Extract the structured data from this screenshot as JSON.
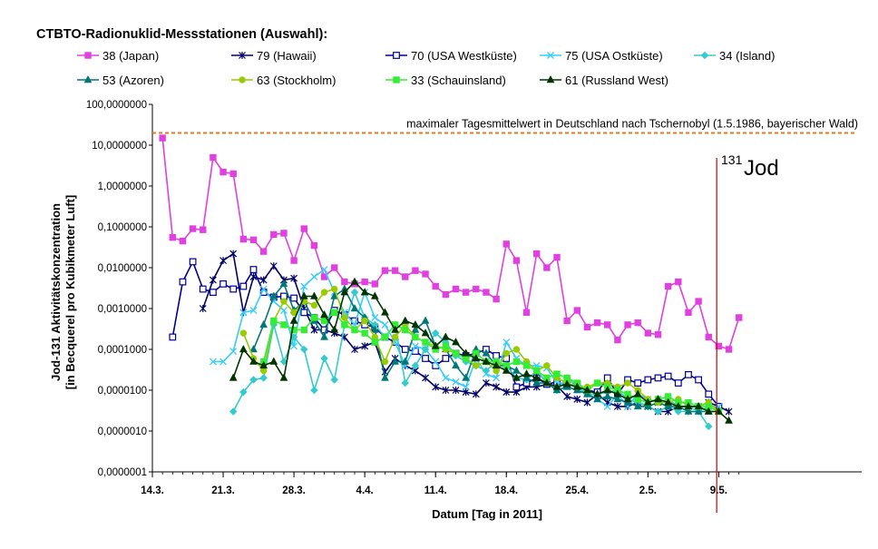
{
  "chart_data": {
    "type": "line",
    "title": "CTBTO-Radionuklid-Messstationen (Auswahl):",
    "xlabel": "Datum  [Tag in 2011]",
    "ylabel": "Jod-131 Aktivitätskonzentration",
    "ylabel2": "[in Becquerel pro Kubikmeter Luft]",
    "y_scale": "log",
    "ylim": [
      1e-07,
      100
    ],
    "y_tick_labels": [
      "0,0000001",
      "0,0000010",
      "0,0000100",
      "0,0001000",
      "0,0010000",
      "0,0100000",
      "0,1000000",
      "1,0000000",
      "10,0000000",
      "100,0000000"
    ],
    "x_range_days": [
      0,
      58
    ],
    "x_tick_days": [
      0,
      7,
      14,
      21,
      28,
      35,
      42,
      49,
      56
    ],
    "x_tick_labels": [
      "14.3.",
      "21.3.",
      "28.3.",
      "4.4.",
      "11.4.",
      "18.4.",
      "25.4.",
      "2.5.",
      "9.5."
    ],
    "reference_line": {
      "value": 20,
      "label": "maximaler Tagesmittelwert in Deutschland nach Tschernobyl (1.5.1986, bayerischer Wald)",
      "color": "#E87722"
    },
    "marker_line": {
      "day": 55.8,
      "label": "Jod",
      "superscript": "131",
      "color": "#CC0000"
    },
    "series": [
      {
        "name": "38 (Japan)",
        "color": "#E040E0",
        "marker": "square-filled",
        "x": [
          1,
          2,
          3,
          4,
          5,
          6,
          7,
          8,
          9,
          10,
          11,
          12,
          13,
          14,
          15,
          16,
          17,
          18,
          19,
          20,
          21,
          22,
          23,
          24,
          25,
          26,
          27,
          28,
          29,
          30,
          31,
          32,
          33,
          34,
          35,
          36,
          37,
          38,
          39,
          40,
          41,
          42,
          43,
          44,
          45,
          46,
          47,
          48,
          49,
          50,
          51,
          52,
          53,
          54,
          55,
          56,
          57,
          58
        ],
        "values": [
          15,
          0.055,
          0.045,
          0.09,
          0.085,
          5,
          2.2,
          2,
          0.05,
          0.048,
          0.025,
          0.065,
          0.07,
          0.015,
          0.09,
          0.035,
          0.006,
          0.01,
          0.0045,
          0.004,
          0.0045,
          0.004,
          0.0085,
          0.0085,
          0.006,
          0.0085,
          0.007,
          0.0035,
          0.0022,
          0.003,
          0.0025,
          0.003,
          0.0025,
          0.0017,
          0.038,
          0.015,
          0.0008,
          0.022,
          0.01,
          0.018,
          0.0005,
          0.0009,
          0.00035,
          0.00045,
          0.0004,
          0.00017,
          0.0004,
          0.00045,
          0.00025,
          0.00023,
          0.0035,
          0.0045,
          0.0008,
          0.0015,
          0.0002,
          0.00012,
          0.0001,
          0.0006
        ]
      },
      {
        "name": "79 (Hawaii)",
        "color": "#000066",
        "marker": "star",
        "x": [
          5,
          6,
          7,
          8,
          9,
          10,
          11,
          12,
          13,
          14,
          15,
          16,
          17,
          18,
          19,
          20,
          21,
          22,
          23,
          24,
          25,
          26,
          27,
          28,
          29,
          30,
          31,
          32,
          33,
          34,
          35,
          36,
          37,
          38,
          39,
          40,
          41,
          42,
          43,
          44,
          45,
          46,
          47,
          48,
          49,
          50,
          51,
          52,
          53,
          54,
          55,
          56,
          57
        ],
        "values": [
          0.001,
          0.005,
          0.015,
          0.022,
          0.0008,
          0.006,
          0.005,
          0.011,
          0.005,
          0.0055,
          0.001,
          0.0003,
          0.0003,
          0.00025,
          0.0002,
          0.0001,
          0.00012,
          0.00015,
          2.8e-05,
          6e-05,
          4e-05,
          3e-05,
          2e-05,
          1.2e-05,
          1e-05,
          1e-05,
          9e-06,
          8e-06,
          1.5e-05,
          1.2e-05,
          9e-06,
          9e-06,
          1.2e-05,
          1.2e-05,
          1.4e-05,
          1.3e-05,
          7e-06,
          6e-06,
          5e-06,
          8e-06,
          5e-06,
          4e-06,
          4e-06,
          5e-06,
          4e-06,
          3e-06,
          3e-06,
          4e-06,
          4e-06,
          4e-06,
          5e-06,
          4e-06,
          3e-06
        ]
      },
      {
        "name": "70 (USA Westküste)",
        "color": "#000099",
        "marker": "square-open",
        "x": [
          2,
          3,
          4,
          5,
          6,
          7,
          8,
          9,
          10,
          11,
          12,
          13,
          14,
          15,
          16,
          17,
          18,
          19,
          20,
          21,
          22,
          23,
          24,
          25,
          26,
          27,
          28,
          29,
          30,
          31,
          32,
          33,
          34,
          35,
          36,
          37,
          38,
          39,
          40,
          41,
          42,
          43,
          44,
          45,
          46,
          47,
          48,
          49,
          50,
          51,
          52,
          53,
          54,
          55,
          56
        ],
        "values": [
          0.0002,
          0.0045,
          0.014,
          0.003,
          0.0025,
          0.004,
          0.003,
          0.0035,
          0.009,
          0.0025,
          0.0019,
          0.002,
          0.0018,
          0.0008,
          0.0006,
          0.0003,
          0.0009,
          0.0007,
          0.0005,
          0.0004,
          0.00035,
          0.0002,
          0.00015,
          0.0001,
          9e-05,
          6e-05,
          4e-05,
          6e-05,
          8e-05,
          7e-05,
          8e-05,
          0.0001,
          7e-05,
          6e-05,
          1.2e-05,
          1.5e-05,
          2e-05,
          1.4e-05,
          1.6e-05,
          1.3e-05,
          1.4e-05,
          1e-05,
          9e-06,
          2e-05,
          8e-06,
          1.8e-05,
          1.5e-05,
          1.8e-05,
          2e-05,
          2.2e-05,
          1.5e-05,
          2.4e-05,
          1.8e-05,
          8e-06,
          4e-06
        ]
      },
      {
        "name": "75 (USA Ostküste)",
        "color": "#33CCFF",
        "marker": "x",
        "x": [
          6,
          7,
          8,
          9,
          10,
          11,
          12,
          13,
          14,
          15,
          16,
          17,
          18,
          19,
          20,
          21,
          22,
          23,
          24,
          25,
          26,
          27,
          28,
          29,
          30,
          31,
          32,
          33,
          34,
          35,
          36,
          37,
          38,
          39,
          40,
          41,
          42,
          43,
          44,
          45,
          46,
          47,
          48,
          49,
          50,
          51,
          52,
          53,
          54,
          55,
          56
        ],
        "values": [
          5e-05,
          5e-05,
          9e-05,
          0.0008,
          0.0009,
          0.003,
          0.0015,
          0.0009,
          0.00012,
          0.0035,
          0.006,
          0.009,
          0.0025,
          0.0008,
          0.0004,
          0.0025,
          0.0006,
          0.0004,
          0.00015,
          4e-05,
          0.00012,
          0.0001,
          5e-05,
          2e-05,
          1.6e-05,
          1.2e-05,
          6e-05,
          2.5e-05,
          2e-05,
          0.00015,
          6e-05,
          4e-05,
          4e-05,
          3.5e-05,
          1.5e-05,
          1.5e-05,
          1.2e-05,
          8e-06,
          6e-06,
          4e-06,
          8e-06,
          4e-06,
          8e-06,
          6e-06,
          5e-06,
          6e-06,
          4e-06,
          4e-06,
          3e-06,
          4e-06,
          4e-06
        ]
      },
      {
        "name": "34 (Island)",
        "color": "#33CCCC",
        "marker": "diamond",
        "x": [
          8,
          9,
          10,
          11,
          12,
          13,
          14,
          15,
          16,
          17,
          18,
          19,
          20,
          21,
          22,
          23,
          24,
          25,
          26,
          27,
          28,
          29,
          30,
          31,
          32,
          33,
          34,
          35,
          36,
          37,
          38,
          39,
          40,
          41,
          42,
          43,
          44,
          45,
          46,
          47,
          48,
          49,
          50,
          51,
          52,
          53,
          54,
          55
        ],
        "values": [
          3e-06,
          9e-06,
          1.8e-05,
          2e-05,
          0.0004,
          5e-05,
          0.0002,
          0.0001,
          1e-05,
          6e-05,
          1.8e-05,
          0.0004,
          0.0025,
          0.0006,
          0.0004,
          0.0002,
          0.0004,
          1.5e-05,
          4e-05,
          0.0001,
          0.00025,
          0.00015,
          7e-05,
          5e-05,
          4e-05,
          3e-05,
          5e-05,
          4e-05,
          2e-05,
          1.8e-05,
          3e-05,
          1.5e-05,
          1e-05,
          2e-05,
          1.2e-05,
          8e-06,
          8e-06,
          9e-06,
          1e-05,
          6e-06,
          5e-06,
          4e-06,
          3e-06,
          4e-06,
          3e-06,
          3e-06,
          3e-06,
          1.3e-06
        ]
      },
      {
        "name": "53 (Azoren)",
        "color": "#007777",
        "marker": "triangle",
        "x": [
          10,
          11,
          12,
          13,
          14,
          15,
          16,
          17,
          18,
          19,
          20,
          21,
          22,
          23,
          24,
          25,
          26,
          27,
          28,
          29,
          30,
          31,
          32,
          33,
          34,
          35,
          36,
          37,
          38,
          39,
          40,
          41,
          42,
          43,
          44,
          45,
          46,
          47,
          48,
          49,
          50,
          51,
          52,
          53,
          54,
          55,
          56
        ],
        "values": [
          0.0001,
          0.0004,
          0.002,
          0.004,
          0.0009,
          0.0015,
          0.0005,
          0.0002,
          0.002,
          0.003,
          0.001,
          0.0006,
          0.0003,
          2e-05,
          5e-05,
          5e-05,
          0.0003,
          0.0005,
          0.00012,
          0.0001,
          4e-05,
          2e-05,
          0.0001,
          8e-05,
          4e-05,
          4e-05,
          3e-05,
          2e-05,
          1.5e-05,
          1.5e-05,
          1e-05,
          1.2e-05,
          1e-05,
          8e-06,
          6e-06,
          7e-06,
          6e-06,
          5e-06,
          4e-06,
          4e-06,
          5e-06,
          4e-06,
          4e-06,
          3e-06,
          3e-06,
          3e-06,
          3e-06
        ]
      },
      {
        "name": "63 (Stockholm)",
        "color": "#99CC00",
        "marker": "circle",
        "x": [
          9,
          10,
          11,
          12,
          13,
          14,
          15,
          16,
          17,
          18,
          19,
          20,
          21,
          22,
          23,
          24,
          25,
          26,
          27,
          28,
          29,
          30,
          31,
          32,
          33,
          34,
          35,
          36,
          37,
          38,
          39,
          40,
          41,
          42,
          43,
          44,
          45,
          46,
          47,
          48,
          49,
          50,
          51,
          52,
          53,
          54,
          55,
          56
        ],
        "values": [
          0.00025,
          6e-05,
          3e-05,
          0.0005,
          0.0015,
          0.0008,
          0.0015,
          0.0012,
          0.0025,
          0.003,
          0.0006,
          0.0003,
          0.0005,
          0.0002,
          5e-05,
          0.0002,
          0.0004,
          0.0002,
          0.00015,
          0.00012,
          0.0001,
          8e-05,
          6e-05,
          4e-05,
          5e-05,
          3e-05,
          8e-05,
          0.0001,
          5e-05,
          3e-05,
          4e-05,
          2e-05,
          1.5e-05,
          1.2e-05,
          1.2e-05,
          1.5e-05,
          1.5e-05,
          1.2e-05,
          1.5e-05,
          1e-05,
          6e-06,
          5e-06,
          5e-06,
          6e-06,
          4e-06,
          4e-06,
          5e-06,
          3e-06
        ]
      },
      {
        "name": "33 (Schauinsland)",
        "color": "#33EE33",
        "marker": "square-filled",
        "x": [
          11,
          12,
          13,
          14,
          15,
          16,
          17,
          18,
          19,
          20,
          21,
          22,
          23,
          24,
          25,
          26,
          27,
          28,
          29,
          30,
          31,
          32,
          33,
          34,
          35,
          36,
          37,
          38,
          39,
          40,
          41,
          42,
          43,
          44,
          45,
          46,
          47,
          48,
          49,
          50,
          51,
          52,
          53,
          54,
          55,
          56
        ],
        "values": [
          5e-05,
          0.0005,
          0.0004,
          0.0003,
          0.0003,
          0.0006,
          0.0005,
          0.0008,
          0.0004,
          0.0003,
          0.00025,
          0.00015,
          0.0002,
          0.0004,
          0.0003,
          0.0002,
          0.00015,
          0.0001,
          0.00012,
          8e-05,
          6e-05,
          8e-05,
          5e-05,
          5e-05,
          4e-05,
          5e-05,
          4e-05,
          3e-05,
          2e-05,
          2.5e-05,
          2e-05,
          1.5e-05,
          1e-05,
          1.5e-05,
          1.2e-05,
          1e-05,
          8e-06,
          6e-06,
          5e-06,
          6e-06,
          7e-06,
          5e-06,
          5e-06,
          4e-06,
          4e-06,
          3e-06
        ]
      },
      {
        "name": "61 (Russland West)",
        "color": "#003300",
        "marker": "triangle",
        "x": [
          8,
          9,
          10,
          11,
          12,
          13,
          14,
          15,
          16,
          17,
          18,
          19,
          20,
          21,
          22,
          23,
          24,
          25,
          26,
          27,
          28,
          29,
          30,
          31,
          32,
          33,
          34,
          35,
          36,
          37,
          38,
          39,
          40,
          41,
          42,
          43,
          44,
          45,
          46,
          47,
          48,
          49,
          50,
          51,
          52,
          53,
          54,
          55,
          56,
          57
        ],
        "values": [
          2e-05,
          0.0001,
          5e-05,
          4e-05,
          5e-05,
          2e-05,
          0.0005,
          0.002,
          0.002,
          0.0007,
          0.0003,
          0.0025,
          0.0045,
          0.0025,
          0.002,
          0.0008,
          0.0003,
          0.0005,
          0.0004,
          0.00025,
          0.00012,
          0.0002,
          0.00015,
          8e-05,
          6e-05,
          5e-05,
          4e-05,
          3e-05,
          2e-05,
          2.5e-05,
          2e-05,
          1.5e-05,
          1.2e-05,
          1.4e-05,
          1.2e-05,
          1e-05,
          8e-06,
          1e-05,
          8e-06,
          6e-06,
          8e-06,
          5e-06,
          6e-06,
          5e-06,
          4e-06,
          4e-06,
          4e-06,
          3e-06,
          3e-06,
          1.8e-06
        ]
      }
    ]
  }
}
